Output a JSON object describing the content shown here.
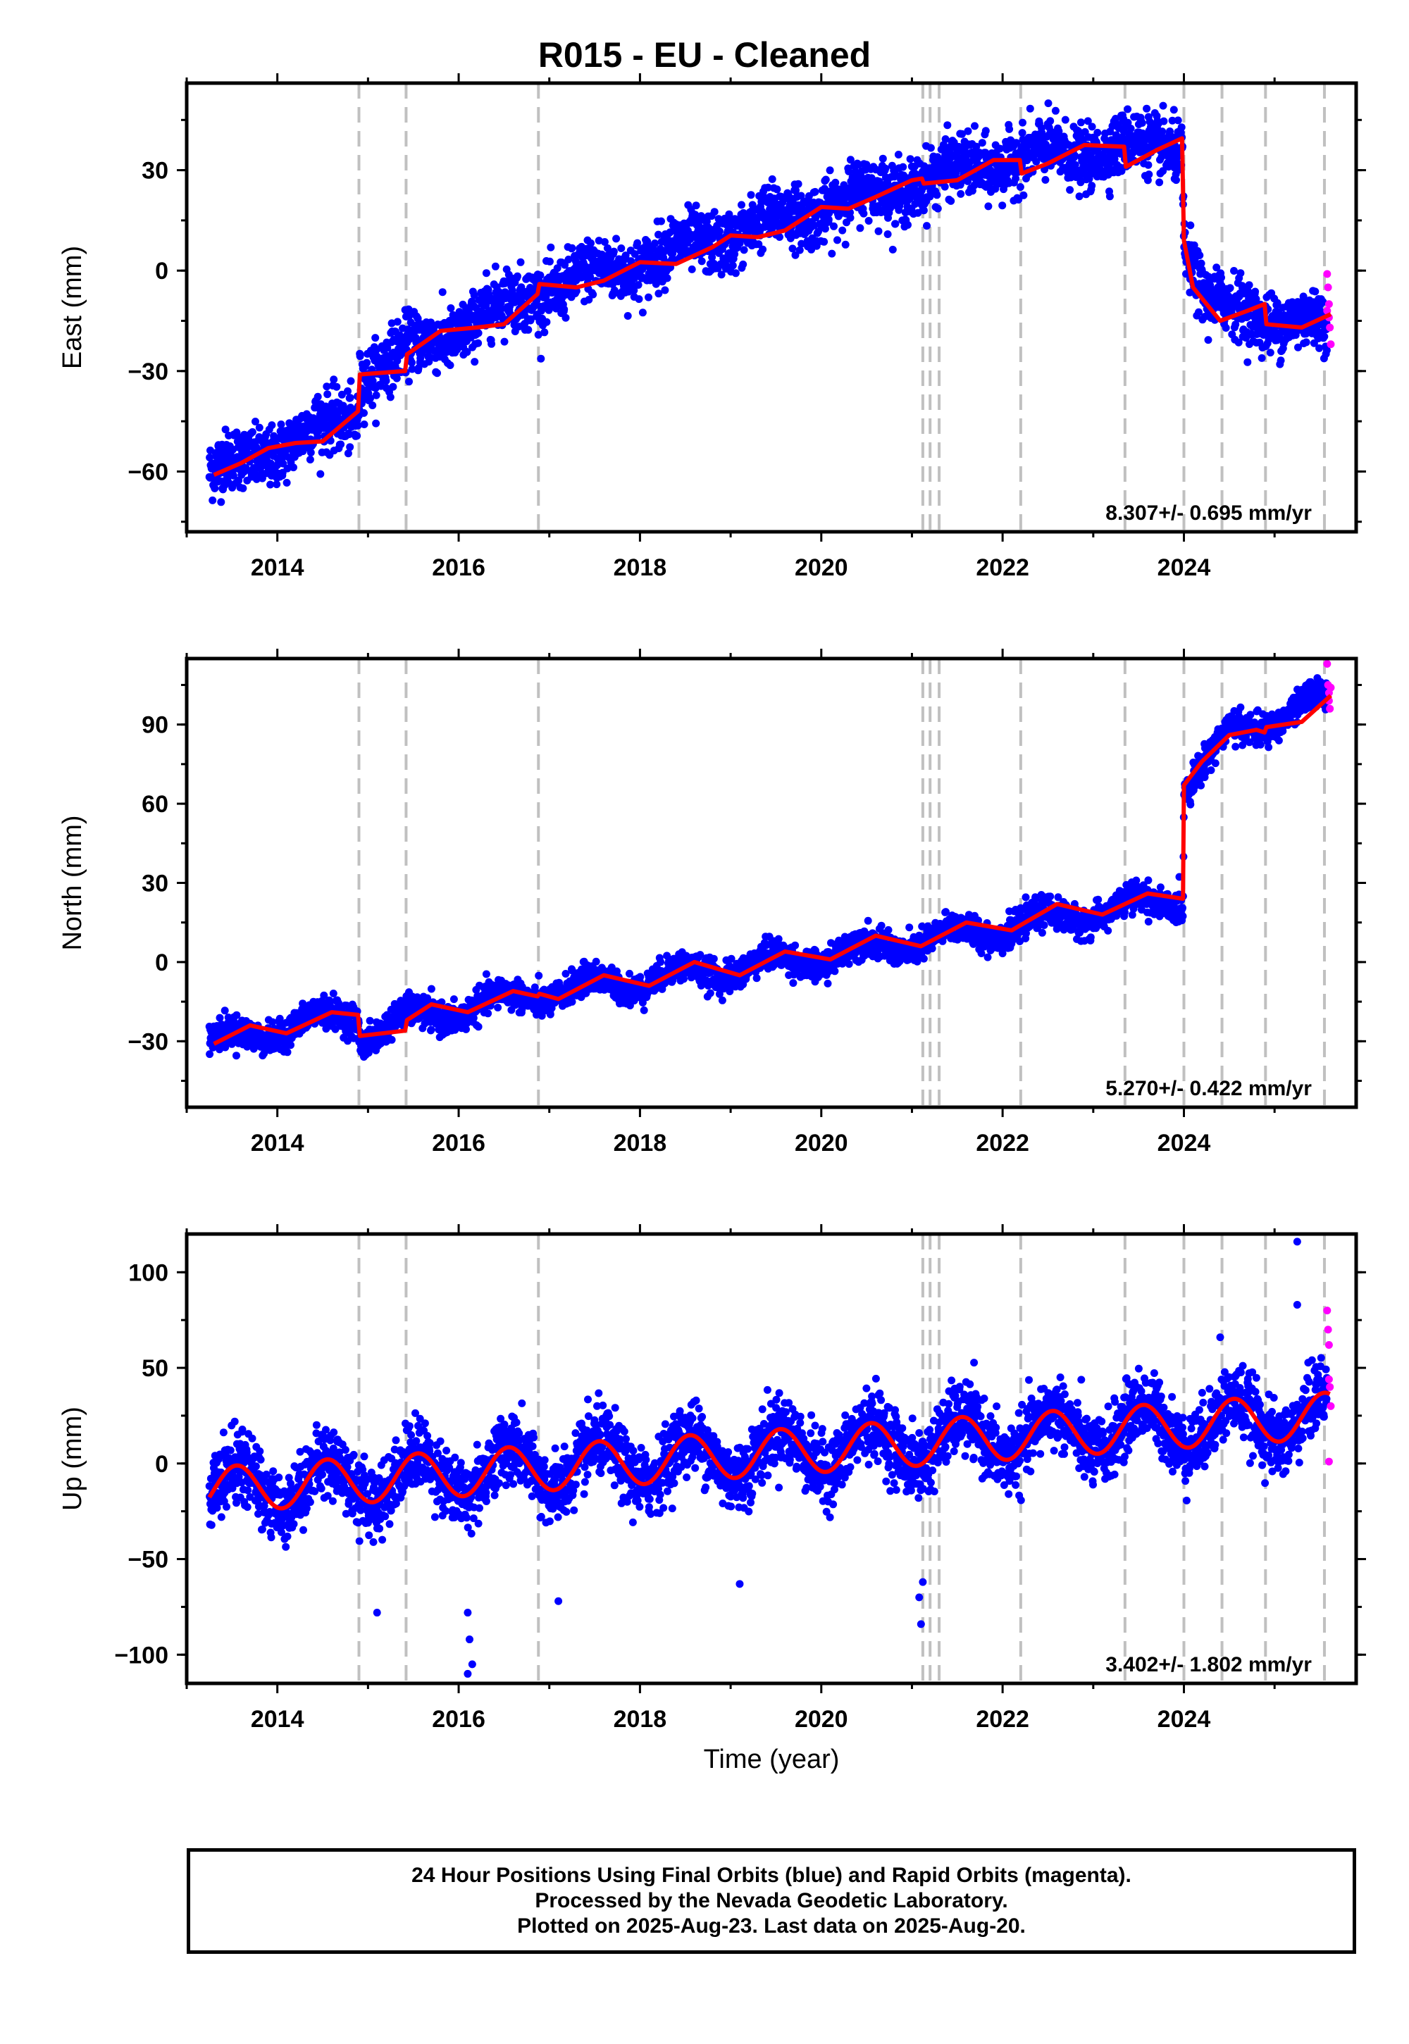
{
  "page_title": "R015  - EU - Cleaned",
  "colors": {
    "final": "#0000ff",
    "rapid": "#ff00ff",
    "model": "#ff0000",
    "event_line": "#c0c0c0"
  },
  "footer": {
    "line1": "24 Hour Positions Using Final Orbits (blue) and Rapid Orbits (magenta).",
    "line2": "Processed by the Nevada Geodetic Laboratory.",
    "line3": "Plotted on 2025-Aug-23. Last data on 2025-Aug-20."
  },
  "chart_data": [
    {
      "type": "scatter",
      "component": "east",
      "ylabel": "East (mm)",
      "xlim": [
        2013.0,
        2025.9
      ],
      "ylim": [
        -78,
        56
      ],
      "xticks": [
        2014,
        2016,
        2018,
        2020,
        2022,
        2024
      ],
      "yticks": [
        -60,
        -30,
        0,
        30
      ],
      "ytick_labels": [
        "-60",
        "-30",
        "0",
        "30"
      ],
      "rate_text": "8.307+/- 0.695 mm/yr",
      "events": [
        2014.9,
        2015.42,
        2016.88,
        2021.12,
        2021.2,
        2021.3,
        2022.2,
        2023.35,
        2024.0,
        2024.42,
        2024.9,
        2025.55
      ],
      "model": [
        [
          2013.3,
          -61
        ],
        [
          2013.6,
          -57.5
        ],
        [
          2013.9,
          -53
        ],
        [
          2014.2,
          -51.5
        ],
        [
          2014.5,
          -51
        ],
        [
          2014.89,
          -42
        ],
        [
          2014.91,
          -31
        ],
        [
          2015.41,
          -30
        ],
        [
          2015.43,
          -25
        ],
        [
          2015.8,
          -18
        ],
        [
          2016.2,
          -17
        ],
        [
          2016.5,
          -16
        ],
        [
          2016.87,
          -7
        ],
        [
          2016.89,
          -4
        ],
        [
          2017.3,
          -5
        ],
        [
          2017.6,
          -3
        ],
        [
          2018.0,
          2.5
        ],
        [
          2018.4,
          2
        ],
        [
          2018.8,
          7
        ],
        [
          2019.0,
          10.5
        ],
        [
          2019.3,
          10
        ],
        [
          2019.6,
          12
        ],
        [
          2020.0,
          19
        ],
        [
          2020.3,
          18.5
        ],
        [
          2020.6,
          22
        ],
        [
          2021.0,
          27
        ],
        [
          2021.11,
          27.5
        ],
        [
          2021.13,
          26
        ],
        [
          2021.5,
          27
        ],
        [
          2021.9,
          33
        ],
        [
          2022.19,
          33
        ],
        [
          2022.21,
          29
        ],
        [
          2022.5,
          32
        ],
        [
          2022.9,
          37.5
        ],
        [
          2023.34,
          37
        ],
        [
          2023.36,
          31
        ],
        [
          2023.7,
          36
        ],
        [
          2023.98,
          39.5
        ],
        [
          2024.0,
          9
        ],
        [
          2024.1,
          -5
        ],
        [
          2024.4,
          -15
        ],
        [
          2024.7,
          -12
        ],
        [
          2024.89,
          -10
        ],
        [
          2024.91,
          -16
        ],
        [
          2025.3,
          -17
        ],
        [
          2025.62,
          -13
        ]
      ],
      "final_trend": [
        [
          2013.25,
          -61
        ],
        [
          2014.89,
          -43
        ],
        [
          2014.91,
          -31
        ],
        [
          2016.88,
          -6
        ],
        [
          2018.0,
          2.5
        ],
        [
          2020.0,
          19
        ],
        [
          2022.0,
          33
        ],
        [
          2023.98,
          38
        ],
        [
          2024.0,
          9
        ],
        [
          2024.25,
          -10
        ],
        [
          2025.58,
          -17
        ]
      ],
      "final_noise_mm": 4.5,
      "rapid_points": [
        [
          2025.58,
          -1
        ],
        [
          2025.59,
          -5
        ],
        [
          2025.6,
          -10
        ],
        [
          2025.6,
          -14
        ],
        [
          2025.61,
          -17
        ],
        [
          2025.62,
          -22
        ],
        [
          2025.58,
          -12
        ]
      ]
    },
    {
      "type": "scatter",
      "component": "north",
      "ylabel": "North (mm)",
      "xlim": [
        2013.0,
        2025.9
      ],
      "ylim": [
        -55,
        115
      ],
      "xticks": [
        2014,
        2016,
        2018,
        2020,
        2022,
        2024
      ],
      "yticks": [
        -30,
        0,
        30,
        60,
        90
      ],
      "ytick_labels": [
        "-30",
        "0",
        "30",
        "60",
        "90"
      ],
      "rate_text": "5.270+/- 0.422 mm/yr",
      "events": [
        2014.9,
        2015.42,
        2016.88,
        2021.12,
        2021.2,
        2021.3,
        2022.2,
        2023.35,
        2024.0,
        2024.42,
        2024.9,
        2025.55
      ],
      "model": [
        [
          2013.3,
          -31
        ],
        [
          2013.7,
          -24
        ],
        [
          2014.1,
          -27
        ],
        [
          2014.6,
          -19
        ],
        [
          2014.89,
          -20
        ],
        [
          2014.91,
          -28
        ],
        [
          2015.41,
          -26
        ],
        [
          2015.43,
          -22
        ],
        [
          2015.7,
          -16
        ],
        [
          2016.1,
          -19
        ],
        [
          2016.6,
          -11
        ],
        [
          2016.87,
          -13
        ],
        [
          2016.89,
          -12
        ],
        [
          2017.1,
          -14
        ],
        [
          2017.6,
          -5
        ],
        [
          2018.1,
          -9
        ],
        [
          2018.6,
          0
        ],
        [
          2019.1,
          -5
        ],
        [
          2019.6,
          4
        ],
        [
          2020.1,
          1
        ],
        [
          2020.6,
          10
        ],
        [
          2021.1,
          6
        ],
        [
          2021.6,
          15
        ],
        [
          2022.1,
          12
        ],
        [
          2022.6,
          22
        ],
        [
          2023.1,
          18
        ],
        [
          2023.6,
          26
        ],
        [
          2023.99,
          24
        ],
        [
          2024.0,
          67
        ],
        [
          2024.2,
          76
        ],
        [
          2024.5,
          86
        ],
        [
          2024.8,
          88
        ],
        [
          2024.89,
          87
        ],
        [
          2024.91,
          89
        ],
        [
          2025.3,
          91
        ],
        [
          2025.62,
          101
        ]
      ],
      "final_trend": [
        [
          2013.25,
          -31
        ],
        [
          2014.89,
          -19
        ],
        [
          2014.91,
          -28
        ],
        [
          2015.43,
          -22
        ],
        [
          2016.88,
          -12
        ],
        [
          2020.0,
          2
        ],
        [
          2023.99,
          24
        ],
        [
          2024.0,
          67
        ],
        [
          2024.5,
          86
        ],
        [
          2025.58,
          100
        ]
      ],
      "final_noise_mm": 2.8,
      "rapid_points": [
        [
          2025.58,
          113
        ],
        [
          2025.59,
          105
        ],
        [
          2025.6,
          102
        ],
        [
          2025.6,
          99
        ],
        [
          2025.61,
          96
        ],
        [
          2025.62,
          104
        ]
      ]
    },
    {
      "type": "scatter",
      "component": "up",
      "ylabel": "Up (mm)",
      "xlabel": "Time (year)",
      "xlim": [
        2013.0,
        2025.9
      ],
      "ylim": [
        -115,
        120
      ],
      "xticks": [
        2014,
        2016,
        2018,
        2020,
        2022,
        2024
      ],
      "yticks": [
        -100,
        -50,
        0,
        50,
        100
      ],
      "ytick_labels": [
        "-100",
        "-50",
        "0",
        "50",
        "100"
      ],
      "rate_text": "3.402+/- 1.802 mm/yr",
      "events": [
        2014.9,
        2015.42,
        2016.88,
        2021.12,
        2021.2,
        2021.3,
        2022.2,
        2023.35,
        2024.0,
        2024.42,
        2024.9,
        2025.55
      ],
      "model_seasonal": {
        "amplitude": 12,
        "offset_start": -14,
        "offset_end": 25,
        "phase_peak": 0.55
      },
      "final_noise_mm": 9,
      "outliers": [
        [
          2016.1,
          -78
        ],
        [
          2016.12,
          -92
        ],
        [
          2016.15,
          -105
        ],
        [
          2016.1,
          -110
        ],
        [
          2021.1,
          -84
        ],
        [
          2021.08,
          -70
        ],
        [
          2021.12,
          -62
        ],
        [
          2025.25,
          116
        ],
        [
          2025.25,
          83
        ],
        [
          2024.4,
          66
        ],
        [
          2015.1,
          -78
        ],
        [
          2017.1,
          -72
        ],
        [
          2019.1,
          -63
        ]
      ],
      "rapid_points": [
        [
          2025.58,
          80
        ],
        [
          2025.59,
          70
        ],
        [
          2025.6,
          62
        ],
        [
          2025.6,
          44
        ],
        [
          2025.61,
          40
        ],
        [
          2025.62,
          30
        ],
        [
          2025.6,
          1
        ]
      ]
    }
  ]
}
